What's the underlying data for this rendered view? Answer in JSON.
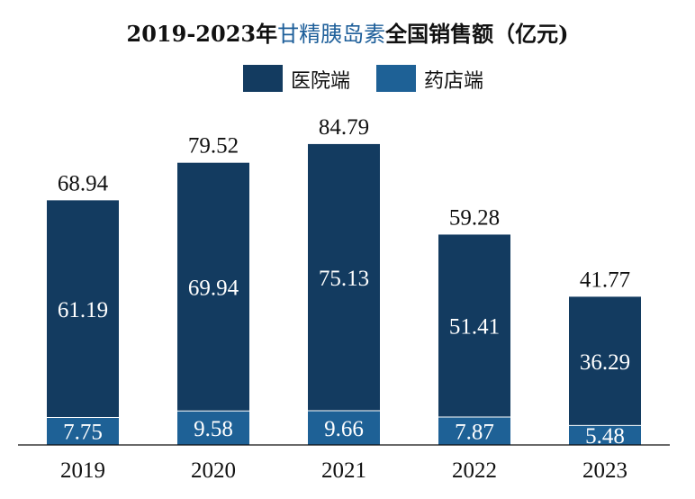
{
  "chart_data": {
    "type": "bar",
    "stacked": true,
    "title_prefix": "2019-2023年",
    "title_highlight": "甘精胰岛素",
    "title_suffix": "全国销售额（亿元)",
    "categories": [
      "2019",
      "2020",
      "2021",
      "2022",
      "2023"
    ],
    "series": [
      {
        "name": "药店端",
        "color": "#1e6196",
        "values": [
          7.75,
          9.58,
          9.66,
          7.87,
          5.48
        ]
      },
      {
        "name": "医院端",
        "color": "#133b60",
        "values": [
          61.19,
          69.94,
          75.13,
          51.41,
          36.29
        ]
      }
    ],
    "totals": [
      "68.94",
      "79.52",
      "84.79",
      "59.28",
      "41.77"
    ],
    "value_labels": [
      [
        "7.75",
        "9.58",
        "9.66",
        "7.87",
        "5.48"
      ],
      [
        "61.19",
        "69.94",
        "75.13",
        "51.41",
        "36.29"
      ]
    ],
    "legend": {
      "position": "top-center",
      "order": [
        "医院端",
        "药店端"
      ]
    },
    "grid": false
  }
}
